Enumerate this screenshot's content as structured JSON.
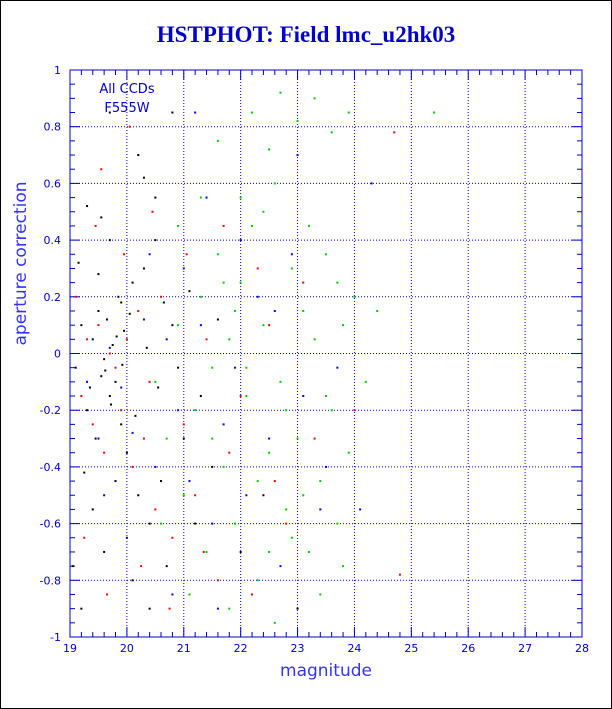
{
  "chart_data": {
    "type": "scatter",
    "title": "HSTPHOT: Field lmc_u2hk03",
    "xlabel": "magnitude",
    "ylabel": "aperture correction",
    "xlim": [
      19,
      28
    ],
    "ylim": [
      -1,
      1
    ],
    "x_ticks": [
      "19",
      "20",
      "21",
      "22",
      "23",
      "24",
      "25",
      "26",
      "27",
      "28"
    ],
    "y_ticks": [
      "1",
      "0.8",
      "0.6",
      "0.4",
      "0.2",
      "0",
      "-0.2",
      "-0.4",
      "-0.6",
      "-0.8",
      "-1"
    ],
    "grid": true,
    "annotation": [
      "All CCDs",
      "F555W"
    ],
    "colors": {
      "axis": "#0000cc",
      "grid": "#0000cc",
      "series": [
        "#000000",
        "#ff0000",
        "#00cc00",
        "#0000ff"
      ]
    },
    "series": [
      {
        "color": "#000000",
        "points": [
          [
            19.1,
            -0.05
          ],
          [
            19.2,
            0.1
          ],
          [
            19.3,
            -0.2
          ],
          [
            19.35,
            -0.12
          ],
          [
            19.4,
            0.05
          ],
          [
            19.45,
            -0.3
          ],
          [
            19.5,
            0.15
          ],
          [
            19.55,
            -0.08
          ],
          [
            19.6,
            -0.02
          ],
          [
            19.65,
            0.12
          ],
          [
            19.7,
            -0.15
          ],
          [
            19.75,
            0.03
          ],
          [
            19.8,
            -0.1
          ],
          [
            19.85,
            0.2
          ],
          [
            19.9,
            -0.25
          ],
          [
            19.95,
            0.08
          ],
          [
            20.0,
            -0.35
          ],
          [
            20.1,
            0.25
          ],
          [
            20.2,
            -0.5
          ],
          [
            20.3,
            0.3
          ],
          [
            20.4,
            -0.6
          ],
          [
            20.5,
            0.4
          ],
          [
            20.6,
            -0.45
          ],
          [
            20.8,
            0.1
          ],
          [
            21.0,
            -0.3
          ],
          [
            19.3,
            0.52
          ],
          [
            19.5,
            0.28
          ],
          [
            19.7,
            0.4
          ],
          [
            19.9,
            0.18
          ],
          [
            20.2,
            0.7
          ],
          [
            20.5,
            0.55
          ],
          [
            19.4,
            -0.55
          ],
          [
            19.6,
            -0.7
          ],
          [
            19.8,
            -0.45
          ],
          [
            20.1,
            -0.8
          ],
          [
            20.4,
            -0.9
          ],
          [
            20.7,
            -0.75
          ],
          [
            21.2,
            -0.6
          ],
          [
            21.5,
            -0.4
          ],
          [
            19.2,
            -0.9
          ],
          [
            19.05,
            -0.75
          ],
          [
            19.15,
            0.32
          ],
          [
            19.25,
            -0.42
          ],
          [
            19.55,
            0.48
          ],
          [
            19.62,
            -0.06
          ],
          [
            19.72,
            -0.18
          ],
          [
            19.82,
            0.06
          ],
          [
            19.92,
            -0.04
          ],
          [
            20.05,
            0.14
          ],
          [
            20.15,
            -0.22
          ],
          [
            20.35,
            0.02
          ],
          [
            20.55,
            -0.12
          ],
          [
            20.65,
            0.18
          ],
          [
            20.9,
            -0.05
          ],
          [
            21.1,
            0.22
          ],
          [
            21.3,
            -0.15
          ],
          [
            21.6,
            0.12
          ],
          [
            22.0,
            -0.7
          ],
          [
            22.4,
            -0.5
          ],
          [
            23.0,
            -0.9
          ],
          [
            19.7,
            0.85
          ],
          [
            20.3,
            0.62
          ],
          [
            20.8,
            0.85
          ]
        ]
      },
      {
        "color": "#ff0000",
        "points": [
          [
            19.1,
            0.2
          ],
          [
            19.2,
            -0.15
          ],
          [
            19.3,
            0.05
          ],
          [
            19.4,
            -0.25
          ],
          [
            19.5,
            0.1
          ],
          [
            19.6,
            -0.35
          ],
          [
            19.7,
            0.0
          ],
          [
            19.8,
            -0.05
          ],
          [
            19.9,
            -0.2
          ],
          [
            20.0,
            0.05
          ],
          [
            20.1,
            -0.4
          ],
          [
            20.2,
            0.15
          ],
          [
            20.3,
            -0.3
          ],
          [
            20.4,
            -0.1
          ],
          [
            20.5,
            -0.55
          ],
          [
            20.6,
            0.2
          ],
          [
            20.8,
            -0.65
          ],
          [
            21.0,
            -0.25
          ],
          [
            21.2,
            -0.5
          ],
          [
            21.4,
            0.05
          ],
          [
            21.6,
            -0.8
          ],
          [
            21.8,
            -0.35
          ],
          [
            22.0,
            -0.15
          ],
          [
            22.3,
            0.3
          ],
          [
            22.6,
            -0.45
          ],
          [
            22.8,
            -0.6
          ],
          [
            23.1,
            0.25
          ],
          [
            23.3,
            -0.3
          ],
          [
            19.25,
            -0.65
          ],
          [
            19.45,
            0.45
          ],
          [
            19.65,
            -0.85
          ],
          [
            19.95,
            0.35
          ],
          [
            20.25,
            -0.75
          ],
          [
            20.45,
            0.5
          ],
          [
            20.75,
            -0.9
          ],
          [
            21.05,
            0.35
          ],
          [
            21.35,
            -0.7
          ],
          [
            21.7,
            0.45
          ],
          [
            22.2,
            -0.85
          ],
          [
            22.5,
            0.1
          ],
          [
            24.0,
            -0.2
          ],
          [
            24.7,
            0.78
          ],
          [
            24.8,
            -0.78
          ],
          [
            19.55,
            0.65
          ],
          [
            20.05,
            0.8
          ]
        ]
      },
      {
        "color": "#00cc00",
        "points": [
          [
            20.5,
            -0.1
          ],
          [
            20.7,
            -0.3
          ],
          [
            20.9,
            0.1
          ],
          [
            21.0,
            -0.5
          ],
          [
            21.2,
            -0.2
          ],
          [
            21.3,
            0.2
          ],
          [
            21.4,
            -0.7
          ],
          [
            21.5,
            -0.05
          ],
          [
            21.6,
            0.35
          ],
          [
            21.7,
            -0.4
          ],
          [
            21.8,
            0.05
          ],
          [
            21.9,
            -0.6
          ],
          [
            22.0,
            0.25
          ],
          [
            22.1,
            -0.15
          ],
          [
            22.2,
            0.45
          ],
          [
            22.3,
            -0.8
          ],
          [
            22.4,
            0.1
          ],
          [
            22.5,
            -0.35
          ],
          [
            22.6,
            0.6
          ],
          [
            22.7,
            -0.1
          ],
          [
            22.8,
            -0.55
          ],
          [
            22.9,
            0.3
          ],
          [
            23.0,
            -0.3
          ],
          [
            23.1,
            0.15
          ],
          [
            23.2,
            -0.7
          ],
          [
            23.3,
            0.05
          ],
          [
            23.4,
            -0.45
          ],
          [
            23.5,
            0.35
          ],
          [
            23.6,
            -0.2
          ],
          [
            23.7,
            -0.6
          ],
          [
            23.8,
            0.1
          ],
          [
            23.9,
            -0.35
          ],
          [
            24.0,
            0.2
          ],
          [
            24.2,
            -0.1
          ],
          [
            24.4,
            0.15
          ],
          [
            21.6,
            0.75
          ],
          [
            22.2,
            0.85
          ],
          [
            22.5,
            0.72
          ],
          [
            22.7,
            0.92
          ],
          [
            23.0,
            0.82
          ],
          [
            23.3,
            0.9
          ],
          [
            23.6,
            0.78
          ],
          [
            23.9,
            0.85
          ],
          [
            25.4,
            0.85
          ],
          [
            22.0,
            0.55
          ],
          [
            22.4,
            0.5
          ],
          [
            21.8,
            -0.9
          ],
          [
            22.6,
            -0.95
          ],
          [
            23.4,
            -0.85
          ],
          [
            23.8,
            -0.75
          ],
          [
            21.1,
            -0.85
          ],
          [
            21.3,
            0.55
          ],
          [
            20.9,
            0.45
          ],
          [
            22.8,
            -0.2
          ],
          [
            23.2,
            0.45
          ],
          [
            21.9,
            0.15
          ],
          [
            22.3,
            -0.45
          ],
          [
            22.9,
            -0.65
          ],
          [
            23.5,
            -0.15
          ],
          [
            21.5,
            -0.3
          ],
          [
            20.6,
            -0.6
          ],
          [
            21.7,
            0.25
          ],
          [
            22.1,
            -0.05
          ],
          [
            23.1,
            -0.5
          ],
          [
            23.7,
            0.25
          ],
          [
            22.5,
            -0.7
          ]
        ]
      },
      {
        "color": "#0000ff",
        "points": [
          [
            19.3,
            -0.1
          ],
          [
            19.5,
            -0.3
          ],
          [
            19.7,
            0.02
          ],
          [
            19.9,
            -0.12
          ],
          [
            20.1,
            -0.28
          ],
          [
            20.3,
            0.12
          ],
          [
            20.5,
            -0.4
          ],
          [
            20.7,
            0.05
          ],
          [
            20.9,
            -0.2
          ],
          [
            21.1,
            -0.45
          ],
          [
            21.3,
            0.1
          ],
          [
            21.5,
            -0.6
          ],
          [
            21.7,
            -0.25
          ],
          [
            21.9,
            -0.05
          ],
          [
            22.1,
            -0.5
          ],
          [
            22.3,
            0.2
          ],
          [
            22.5,
            -0.3
          ],
          [
            22.7,
            -0.75
          ],
          [
            22.9,
            0.35
          ],
          [
            23.1,
            -0.15
          ],
          [
            23.4,
            -0.55
          ],
          [
            23.7,
            -0.05
          ],
          [
            21.0,
            0.3
          ],
          [
            21.4,
            0.55
          ],
          [
            21.2,
            0.85
          ],
          [
            22.0,
            0.4
          ],
          [
            23.0,
            0.7
          ],
          [
            19.6,
            -0.5
          ],
          [
            20.0,
            -0.65
          ],
          [
            20.4,
            0.35
          ],
          [
            20.8,
            -0.85
          ],
          [
            21.6,
            -0.9
          ],
          [
            24.3,
            0.6
          ],
          [
            22.6,
            0.15
          ],
          [
            23.5,
            -0.4
          ],
          [
            24.1,
            -0.55
          ]
        ]
      }
    ]
  }
}
